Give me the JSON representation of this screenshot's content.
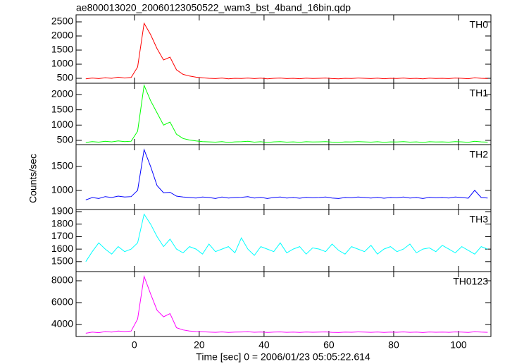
{
  "chart_data": [
    {
      "type": "line",
      "title": "ae800013020_20060123050522_wam3_bst_4band_16bin.qdp",
      "x": [
        -15,
        -13,
        -11,
        -9,
        -7,
        -5,
        -3,
        -1,
        1,
        3,
        5,
        7,
        9,
        11,
        13,
        15,
        17,
        19,
        21,
        23,
        25,
        27,
        29,
        31,
        33,
        35,
        37,
        39,
        41,
        43,
        45,
        47,
        49,
        51,
        53,
        55,
        57,
        59,
        61,
        63,
        65,
        67,
        69,
        71,
        73,
        75,
        77,
        79,
        81,
        83,
        85,
        87,
        89,
        91,
        93,
        95,
        97,
        99,
        101,
        103,
        105,
        107,
        109
      ],
      "series": [
        {
          "name": "TH0",
          "color": "#ff0000",
          "values": [
            480,
            510,
            490,
            520,
            500,
            540,
            510,
            530,
            900,
            2450,
            2050,
            1550,
            1150,
            1250,
            800,
            640,
            580,
            540,
            520,
            500,
            490,
            510,
            480,
            500,
            495,
            510,
            490,
            505,
            480,
            500,
            510,
            490,
            500,
            485,
            505,
            495,
            500,
            510,
            490,
            480,
            500,
            495,
            510,
            500,
            490,
            505,
            485,
            500,
            495,
            510,
            490,
            500,
            480,
            505,
            495,
            500,
            490,
            510,
            500,
            485,
            520,
            500,
            490
          ]
        }
      ],
      "ylim": [
        325,
        2750
      ],
      "yticks": [
        500,
        1000,
        1500,
        2000,
        2500
      ]
    },
    {
      "type": "line",
      "x": [
        -15,
        -13,
        -11,
        -9,
        -7,
        -5,
        -3,
        -1,
        1,
        3,
        5,
        7,
        9,
        11,
        13,
        15,
        17,
        19,
        21,
        23,
        25,
        27,
        29,
        31,
        33,
        35,
        37,
        39,
        41,
        43,
        45,
        47,
        49,
        51,
        53,
        55,
        57,
        59,
        61,
        63,
        65,
        67,
        69,
        71,
        73,
        75,
        77,
        79,
        81,
        83,
        85,
        87,
        89,
        91,
        93,
        95,
        97,
        99,
        101,
        103,
        105,
        107,
        109
      ],
      "series": [
        {
          "name": "TH1",
          "color": "#00ff00",
          "values": [
            430,
            460,
            440,
            470,
            450,
            480,
            460,
            470,
            800,
            2300,
            1800,
            1400,
            1000,
            1100,
            700,
            560,
            510,
            480,
            460,
            450,
            440,
            460,
            430,
            450,
            455,
            470,
            440,
            455,
            430,
            450,
            460,
            440,
            450,
            435,
            455,
            445,
            450,
            460,
            440,
            430,
            450,
            445,
            460,
            450,
            440,
            455,
            435,
            450,
            445,
            460,
            440,
            450,
            430,
            455,
            445,
            450,
            440,
            460,
            450,
            435,
            470,
            450,
            440
          ]
        }
      ],
      "ylim": [
        360,
        2370
      ],
      "yticks": [
        500,
        1000,
        1500,
        2000
      ]
    },
    {
      "type": "line",
      "ylabel": "Counts/sec",
      "x": [
        -15,
        -13,
        -11,
        -9,
        -7,
        -5,
        -3,
        -1,
        1,
        3,
        5,
        7,
        9,
        11,
        13,
        15,
        17,
        19,
        21,
        23,
        25,
        27,
        29,
        31,
        33,
        35,
        37,
        39,
        41,
        43,
        45,
        47,
        49,
        51,
        53,
        55,
        57,
        59,
        61,
        63,
        65,
        67,
        69,
        71,
        73,
        75,
        77,
        79,
        81,
        83,
        85,
        87,
        89,
        91,
        93,
        95,
        97,
        99,
        101,
        103,
        105,
        107,
        109
      ],
      "series": [
        {
          "name": "TH2",
          "color": "#0000ff",
          "values": [
            800,
            850,
            830,
            870,
            850,
            880,
            860,
            870,
            1000,
            1850,
            1500,
            1100,
            950,
            960,
            880,
            860,
            850,
            840,
            860,
            850,
            830,
            860,
            840,
            850,
            855,
            870,
            840,
            855,
            830,
            850,
            860,
            840,
            850,
            835,
            855,
            845,
            850,
            860,
            840,
            830,
            850,
            845,
            860,
            850,
            840,
            855,
            835,
            850,
            845,
            860,
            840,
            850,
            830,
            855,
            845,
            850,
            840,
            860,
            850,
            835,
            1000,
            850,
            840
          ]
        }
      ],
      "ylim": [
        600,
        1955
      ],
      "yticks": [
        1000,
        1500
      ]
    },
    {
      "type": "line",
      "x": [
        -15,
        -13,
        -11,
        -9,
        -7,
        -5,
        -3,
        -1,
        1,
        3,
        5,
        7,
        9,
        11,
        13,
        15,
        17,
        19,
        21,
        23,
        25,
        27,
        29,
        31,
        33,
        35,
        37,
        39,
        41,
        43,
        45,
        47,
        49,
        51,
        53,
        55,
        57,
        59,
        61,
        63,
        65,
        67,
        69,
        71,
        73,
        75,
        77,
        79,
        81,
        83,
        85,
        87,
        89,
        91,
        93,
        95,
        97,
        99,
        101,
        103,
        105,
        107,
        109
      ],
      "series": [
        {
          "name": "TH3",
          "color": "#00ffff",
          "values": [
            1500,
            1580,
            1650,
            1600,
            1560,
            1620,
            1580,
            1600,
            1650,
            1880,
            1800,
            1700,
            1620,
            1680,
            1600,
            1570,
            1620,
            1600,
            1560,
            1640,
            1580,
            1600,
            1620,
            1570,
            1690,
            1600,
            1550,
            1620,
            1600,
            1580,
            1650,
            1570,
            1600,
            1620,
            1560,
            1610,
            1600,
            1580,
            1640,
            1590,
            1560,
            1620,
            1600,
            1580,
            1630,
            1560,
            1600,
            1620,
            1580,
            1600,
            1640,
            1570,
            1600,
            1610,
            1580,
            1630,
            1600,
            1570,
            1620,
            1590,
            1560,
            1620,
            1600
          ]
        }
      ],
      "ylim": [
        1420,
        1917
      ],
      "yticks": [
        1500,
        1600,
        1700,
        1800,
        1900
      ]
    },
    {
      "type": "line",
      "xlabel": "Time [sec] 0 = 2006/01/23 05:05:22.614",
      "x": [
        -15,
        -13,
        -11,
        -9,
        -7,
        -5,
        -3,
        -1,
        1,
        3,
        5,
        7,
        9,
        11,
        13,
        15,
        17,
        19,
        21,
        23,
        25,
        27,
        29,
        31,
        33,
        35,
        37,
        39,
        41,
        43,
        45,
        47,
        49,
        51,
        53,
        55,
        57,
        59,
        61,
        63,
        65,
        67,
        69,
        71,
        73,
        75,
        77,
        79,
        81,
        83,
        85,
        87,
        89,
        91,
        93,
        95,
        97,
        99,
        101,
        103,
        105,
        107,
        109
      ],
      "series": [
        {
          "name": "TH0123",
          "color": "#ff00ff",
          "values": [
            3200,
            3300,
            3250,
            3350,
            3300,
            3400,
            3350,
            3400,
            4500,
            8400,
            6800,
            5300,
            4700,
            5000,
            3700,
            3500,
            3400,
            3350,
            3330,
            3300,
            3280,
            3320,
            3270,
            3300,
            3310,
            3330,
            3290,
            3310,
            3270,
            3300,
            3320,
            3280,
            3300,
            3270,
            3310,
            3290,
            3300,
            3320,
            3280,
            3260,
            3300,
            3290,
            3320,
            3300,
            3280,
            3310,
            3270,
            3300,
            3290,
            3320,
            3280,
            3300,
            3260,
            3310,
            3290,
            3300,
            3280,
            3320,
            3300,
            3270,
            3340,
            3300,
            3280
          ]
        }
      ],
      "ylim": [
        2900,
        8840
      ],
      "yticks": [
        4000,
        6000,
        8000
      ],
      "xlim": [
        -18,
        110
      ],
      "xticks": [
        0,
        20,
        40,
        60,
        80,
        100
      ]
    }
  ]
}
